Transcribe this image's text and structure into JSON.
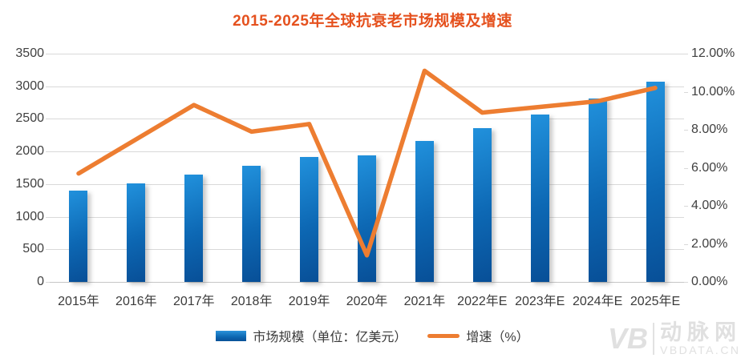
{
  "title": "2015-2025年全球抗衰老市场规模及增速",
  "chart_data": {
    "type": "bar",
    "subtype": "combo-bar-line-dual-axis",
    "title": "2015-2025年全球抗衰老市场规模及增速",
    "categories": [
      "2015年",
      "2016年",
      "2017年",
      "2018年",
      "2019年",
      "2020年",
      "2021年",
      "2022年E",
      "2023年E",
      "2024年E",
      "2025年E"
    ],
    "series": [
      {
        "name": "市场规模（单位：亿美元）",
        "type": "bar",
        "axis": "left",
        "values": [
          1395,
          1505,
          1645,
          1775,
          1920,
          1945,
          2165,
          2355,
          2570,
          2815,
          3075
        ]
      },
      {
        "name": "增速（%）",
        "type": "line",
        "axis": "right",
        "values": [
          5.7,
          7.5,
          9.3,
          7.9,
          8.3,
          1.4,
          11.1,
          8.9,
          9.2,
          9.5,
          10.2
        ]
      }
    ],
    "left_axis": {
      "min": 0,
      "max": 3500,
      "step": 500,
      "ticks": [
        "3500",
        "3000",
        "2500",
        "2000",
        "1500",
        "1000",
        "500",
        "0"
      ]
    },
    "right_axis": {
      "min": 0,
      "max": 12,
      "step": 2,
      "ticks": [
        "12.00%",
        "10.00%",
        "8.00%",
        "6.00%",
        "4.00%",
        "2.00%",
        "0.00%"
      ]
    },
    "grid": true,
    "legend_position": "bottom"
  },
  "legend": {
    "bar_label": "市场规模（单位：亿美元）",
    "line_label": "增速（%）"
  },
  "colors": {
    "title": "#E5511E",
    "bar_gradient_top": "#2191dc",
    "bar_gradient_bottom": "#084f97",
    "line": "#ED7D31",
    "axis_text": "#3f3f3f",
    "gridline": "#d9d9d9",
    "watermark": "#e0e0e0"
  },
  "watermark": {
    "logo": "VB",
    "name": "动脉网",
    "url": "VBDATA.CN"
  }
}
